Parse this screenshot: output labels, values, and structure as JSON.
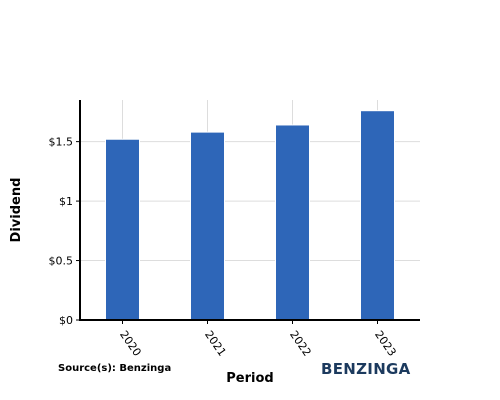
{
  "chart_data": {
    "type": "bar",
    "categories": [
      "2020",
      "2021",
      "2022",
      "2023"
    ],
    "values": [
      1.52,
      1.58,
      1.64,
      1.76
    ],
    "xlabel": "Period",
    "ylabel": "Dividend",
    "ylim": [
      0,
      1.85
    ],
    "yticks": [
      0,
      0.5,
      1,
      1.5
    ],
    "ytick_labels": [
      "$0",
      "$0.5",
      "$1",
      "$1.5"
    ],
    "grid": true,
    "bar_color": "#2e66b8"
  },
  "source": "Source(s): Benzinga",
  "brand": "BENZINGA"
}
